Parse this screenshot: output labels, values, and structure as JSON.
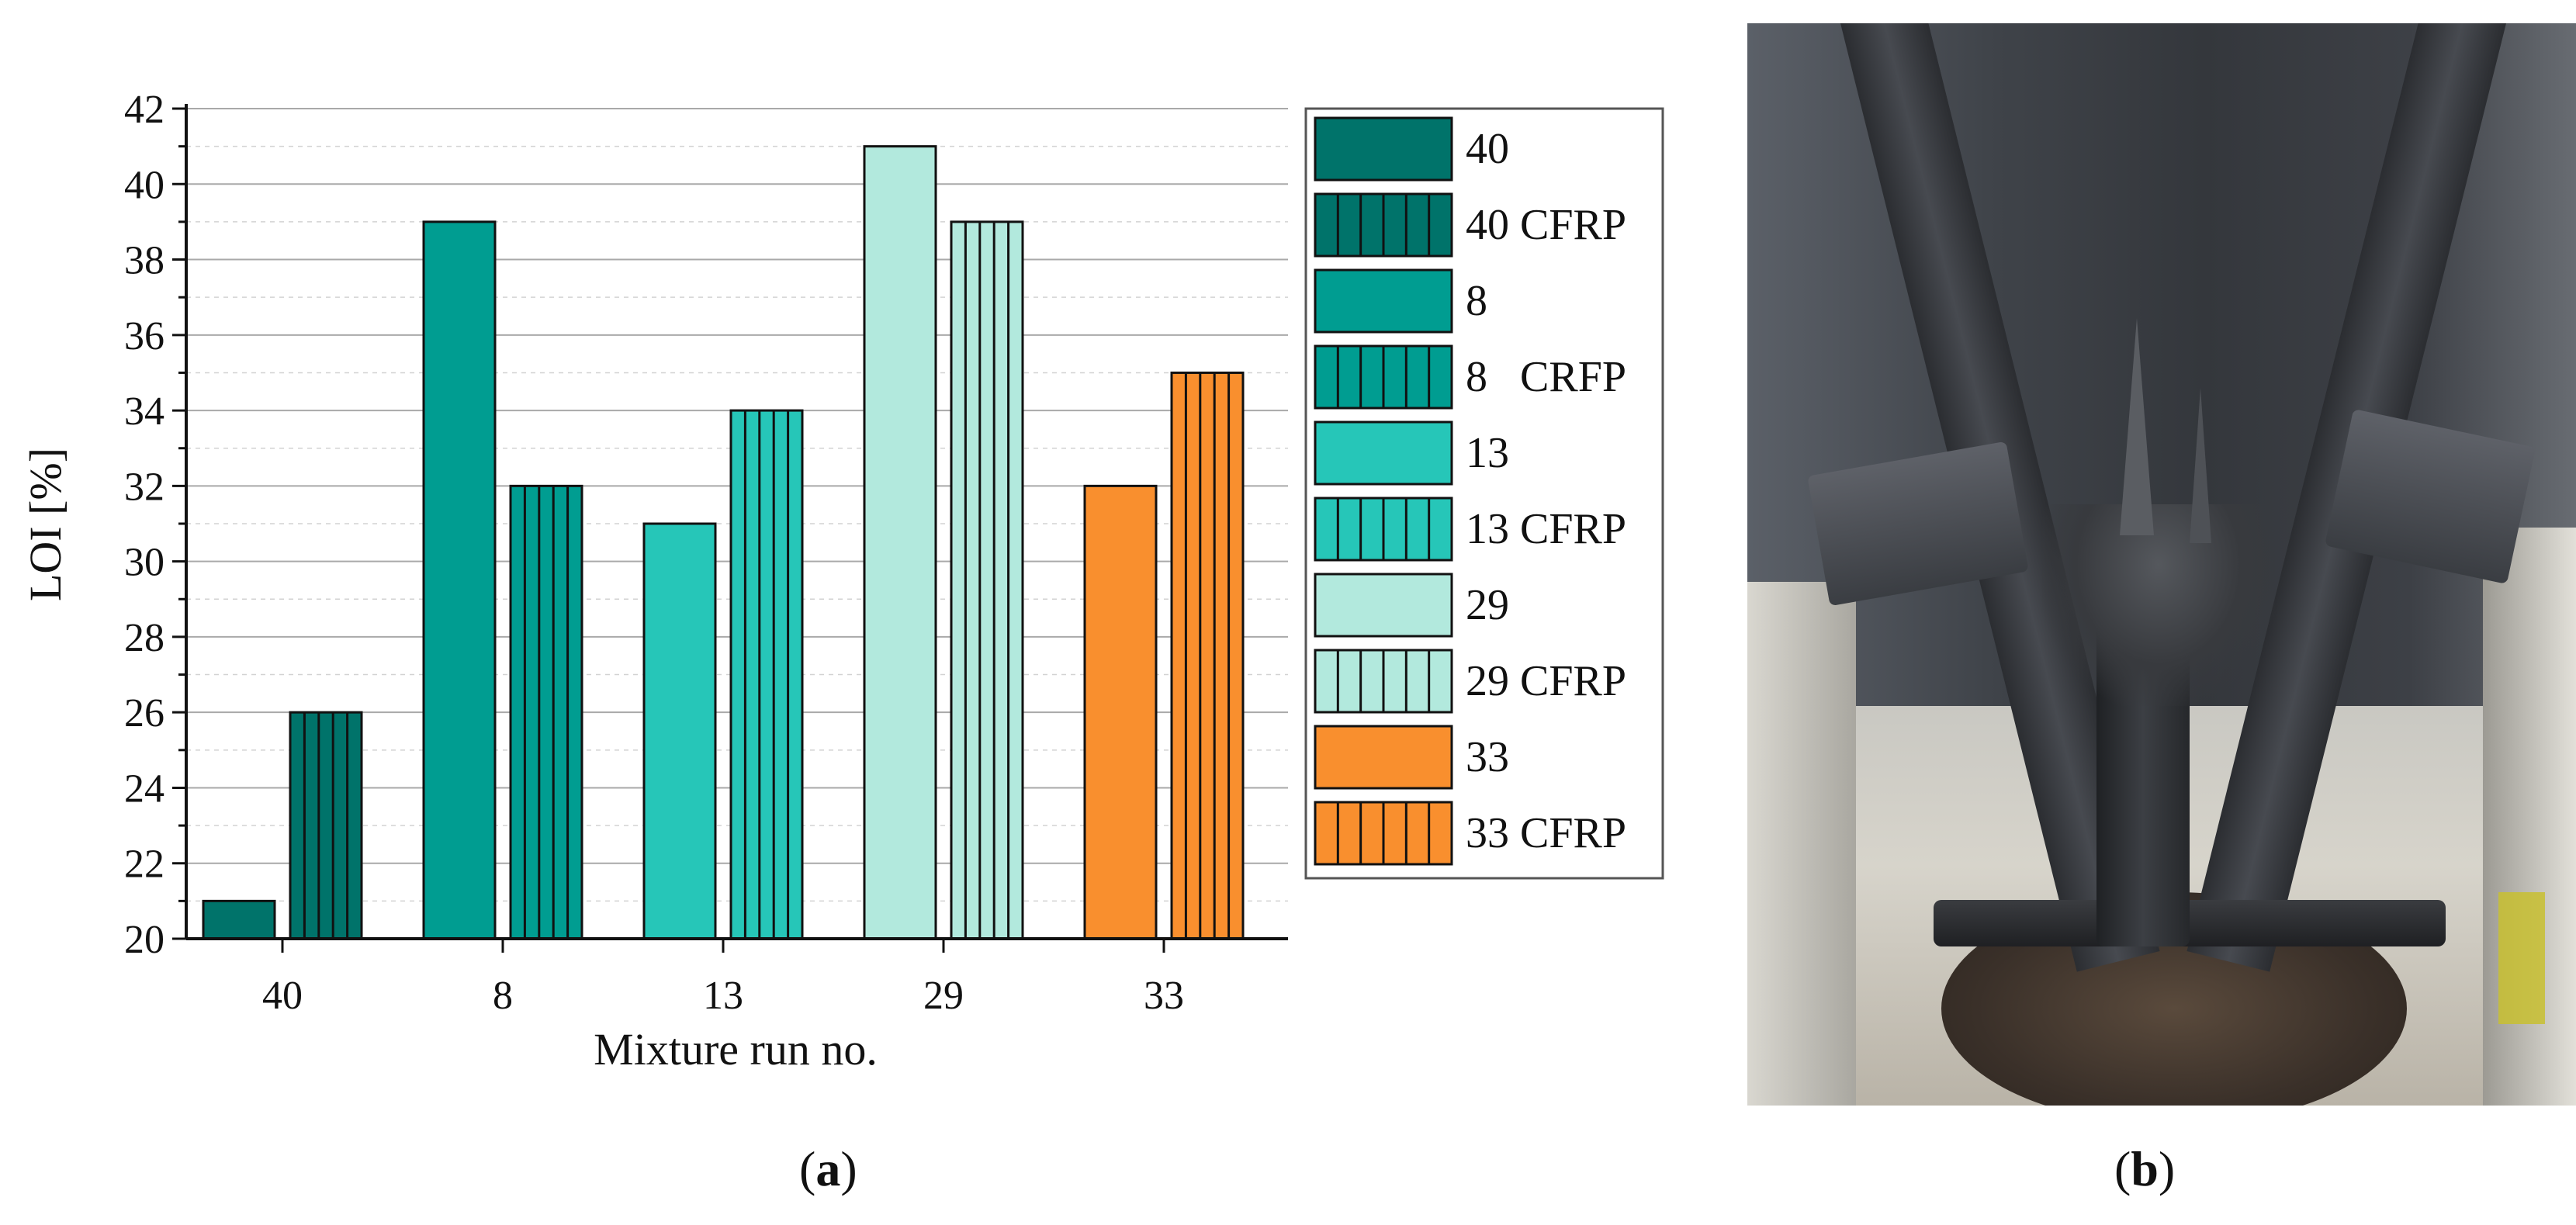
{
  "chart_data": {
    "type": "bar",
    "ylabel": "LOI [%]",
    "xlabel": "Mixture run no.",
    "ylim": [
      20,
      42
    ],
    "yticks": [
      20,
      22,
      24,
      26,
      28,
      30,
      32,
      34,
      36,
      38,
      40,
      42
    ],
    "categories": [
      "40",
      "8",
      "13",
      "29",
      "33"
    ],
    "series": [
      {
        "name": "40",
        "category": "40",
        "value": 21,
        "color": "#00736a",
        "hatched": false
      },
      {
        "name": "40 CFRP",
        "category": "40",
        "value": 26,
        "color": "#00736a",
        "hatched": true
      },
      {
        "name": "8",
        "category": "8",
        "value": 39,
        "color": "#009d91",
        "hatched": false
      },
      {
        "name": "8   CRFP",
        "category": "8",
        "value": 32,
        "color": "#009d91",
        "hatched": true
      },
      {
        "name": "13",
        "category": "13",
        "value": 31,
        "color": "#26c6b8",
        "hatched": false
      },
      {
        "name": "13 CFRP",
        "category": "13",
        "value": 34,
        "color": "#26c6b8",
        "hatched": true
      },
      {
        "name": "29",
        "category": "29",
        "value": 41,
        "color": "#b2e9dd",
        "hatched": false
      },
      {
        "name": "29 CFRP",
        "category": "29",
        "value": 39,
        "color": "#b2e9dd",
        "hatched": true
      },
      {
        "name": "33",
        "category": "33",
        "value": 32,
        "color": "#f98f2e",
        "hatched": false
      },
      {
        "name": "33 CFRP",
        "category": "33",
        "value": 35,
        "color": "#f98f2e",
        "hatched": true
      }
    ],
    "grid": true,
    "legend_position": "right"
  },
  "captions": {
    "a_open": "(",
    "a_letter": "a",
    "a_close": ")",
    "b_open": "(",
    "b_letter": "b",
    "b_close": ")"
  },
  "photo": {
    "icon": "charred-cfrp-specimen-photo"
  }
}
